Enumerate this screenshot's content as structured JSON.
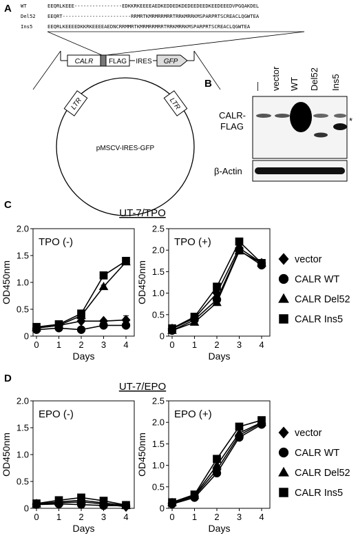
{
  "panel_labels": {
    "a": "A",
    "b": "B",
    "c": "C",
    "d": "D"
  },
  "sequences": [
    {
      "name": "WT",
      "seq": "EEQRLKEEE----------------EDKKRKEEEEAEDKEDDEDKDEDEEDEEDKEEDEEEDVPGQAKDEL"
    },
    {
      "name": "Del52",
      "seq": "EEQRT-----------------------RRMRTKMRMRRMRRTRRKMRRKMSPARPRTSCREACLQGWTEA"
    },
    {
      "name": "Ins5",
      "seq": "EEQRLKEEEEDKKRKEEEEAEDNCRRMMRTKMRMRRMRRTRRKMRRKMSPARPRTSCREACLQGWTEA"
    }
  ],
  "construct": {
    "segments": [
      "CALR",
      "FLAG",
      "IRES",
      "GFP"
    ],
    "ltr": "LTR",
    "vector_name": "pMSCV-IRES-GFP"
  },
  "western": {
    "lanes": [
      "—",
      "vector",
      "WT",
      "Del52",
      "Ins5"
    ],
    "row1_label": [
      "CALR-",
      "FLAG"
    ],
    "row2_label": "β-Actin",
    "star": "*"
  },
  "section_titles": {
    "c": "UT-7/TPO",
    "d": "UT-7/EPO"
  },
  "legend": [
    {
      "name": "vector",
      "marker": "diamond"
    },
    {
      "name": "CALR WT",
      "marker": "circle"
    },
    {
      "name": "CALR Del52",
      "marker": "triangle"
    },
    {
      "name": "CALR Ins5",
      "marker": "square"
    }
  ],
  "chart_data": [
    {
      "type": "line",
      "panel": "C",
      "title": "TPO (-)",
      "xlabel": "Days",
      "ylabel": "OD450nm",
      "ylim": [
        0,
        2.0
      ],
      "x": [
        0,
        1,
        2,
        3,
        4
      ],
      "yticks": [
        "0",
        "0.5",
        "1.0",
        "1.5",
        "2.0"
      ],
      "series": [
        {
          "name": "vector",
          "marker": "diamond",
          "values": [
            0.15,
            0.2,
            0.28,
            0.28,
            0.3
          ],
          "errors": [
            0,
            0,
            0,
            0,
            0.08
          ]
        },
        {
          "name": "CALR WT",
          "marker": "circle",
          "values": [
            0.12,
            0.15,
            0.12,
            0.2,
            0.2
          ],
          "errors": [
            0,
            0,
            0,
            0,
            0
          ]
        },
        {
          "name": "CALR Del52",
          "marker": "triangle",
          "values": [
            0.15,
            0.2,
            0.38,
            0.92,
            1.38
          ],
          "errors": [
            0,
            0,
            0,
            0.03,
            0
          ]
        },
        {
          "name": "CALR Ins5",
          "marker": "square",
          "values": [
            0.17,
            0.22,
            0.42,
            1.13,
            1.4
          ],
          "errors": [
            0,
            0,
            0,
            0,
            0.03
          ]
        }
      ]
    },
    {
      "type": "line",
      "panel": "C",
      "title": "TPO (+)",
      "xlabel": "Days",
      "ylabel": "OD450nm",
      "ylim": [
        0,
        2.5
      ],
      "x": [
        0,
        1,
        2,
        3,
        4
      ],
      "yticks": [
        "0",
        "0.5",
        "1.0",
        "1.5",
        "2.0",
        "2.5"
      ],
      "series": [
        {
          "name": "vector",
          "marker": "diamond",
          "values": [
            0.17,
            0.42,
            1.0,
            2.05,
            1.7
          ],
          "errors": [
            0,
            0,
            0.12,
            0,
            0
          ]
        },
        {
          "name": "CALR WT",
          "marker": "circle",
          "values": [
            0.13,
            0.38,
            0.85,
            2.0,
            1.65
          ],
          "errors": [
            0,
            0,
            0,
            0,
            0
          ]
        },
        {
          "name": "CALR Del52",
          "marker": "triangle",
          "values": [
            0.13,
            0.32,
            0.78,
            1.98,
            1.7
          ],
          "errors": [
            0,
            0,
            0,
            0,
            0
          ]
        },
        {
          "name": "CALR Ins5",
          "marker": "square",
          "values": [
            0.18,
            0.45,
            1.15,
            2.2,
            1.7
          ],
          "errors": [
            0,
            0,
            0,
            0,
            0
          ]
        }
      ]
    },
    {
      "type": "line",
      "panel": "D",
      "title": "EPO (-)",
      "xlabel": "Days",
      "ylabel": "OD450nm",
      "ylim": [
        0,
        2.0
      ],
      "x": [
        0,
        1,
        2,
        3,
        4
      ],
      "yticks": [
        "0",
        "0.5",
        "1.0",
        "1.5",
        "2.0"
      ],
      "series": [
        {
          "name": "vector",
          "marker": "diamond",
          "values": [
            0.08,
            0.1,
            0.12,
            0.08,
            0.03
          ],
          "errors": [
            0,
            0,
            0,
            0,
            0
          ]
        },
        {
          "name": "CALR WT",
          "marker": "circle",
          "values": [
            0.07,
            0.08,
            0.07,
            0.05,
            0.05
          ],
          "errors": [
            0,
            0,
            0,
            0,
            0
          ]
        },
        {
          "name": "CALR Del52",
          "marker": "triangle",
          "values": [
            0.08,
            0.12,
            0.15,
            0.1,
            0.05
          ],
          "errors": [
            0,
            0,
            0,
            0,
            0
          ]
        },
        {
          "name": "CALR Ins5",
          "marker": "square",
          "values": [
            0.09,
            0.15,
            0.2,
            0.14,
            0.06
          ],
          "errors": [
            0,
            0,
            0,
            0,
            0
          ]
        }
      ]
    },
    {
      "type": "line",
      "panel": "D",
      "title": "EPO (+)",
      "xlabel": "Days",
      "ylabel": "OD450nm",
      "ylim": [
        0,
        2.5
      ],
      "x": [
        0,
        1,
        2,
        3,
        4
      ],
      "yticks": [
        "0",
        "0.5",
        "1.0",
        "1.5",
        "2.0",
        "2.5"
      ],
      "series": [
        {
          "name": "vector",
          "marker": "diamond",
          "values": [
            0.12,
            0.28,
            0.9,
            1.7,
            1.98
          ],
          "errors": [
            0,
            0,
            0,
            0,
            0
          ]
        },
        {
          "name": "CALR WT",
          "marker": "circle",
          "values": [
            0.1,
            0.25,
            0.82,
            1.65,
            1.95
          ],
          "errors": [
            0,
            0,
            0,
            0,
            0
          ]
        },
        {
          "name": "CALR Del52",
          "marker": "triangle",
          "values": [
            0.13,
            0.3,
            1.0,
            1.75,
            2.0
          ],
          "errors": [
            0,
            0,
            0,
            0,
            0
          ]
        },
        {
          "name": "CALR Ins5",
          "marker": "square",
          "values": [
            0.14,
            0.32,
            1.15,
            1.9,
            2.05
          ],
          "errors": [
            0,
            0,
            0,
            0,
            0
          ]
        }
      ]
    }
  ]
}
